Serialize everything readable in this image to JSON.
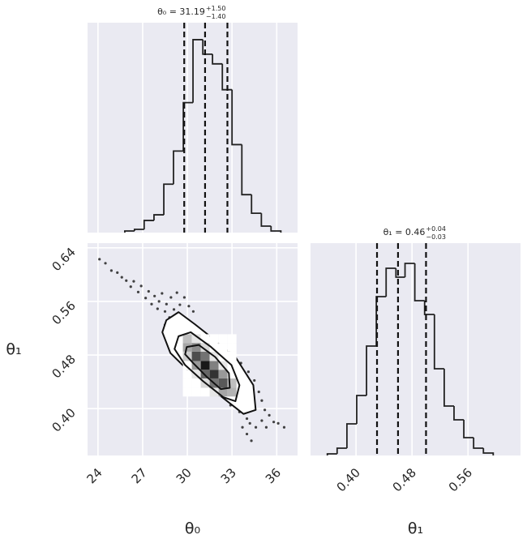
{
  "chart_data": [
    {
      "type": "histogram",
      "title": "θ₀ = 31.19",
      "title_sup": "+1.50",
      "title_sub": "−1.40",
      "bins": [
        25.8,
        26.45,
        27.1,
        27.76,
        28.42,
        29.07,
        29.73,
        30.38,
        31.04,
        31.69,
        32.35,
        33.0,
        33.66,
        34.31,
        34.97,
        35.62,
        36.28
      ],
      "values": [
        2,
        4,
        15,
        22,
        60,
        101,
        161,
        239,
        221,
        209,
        177,
        109,
        47,
        24,
        8,
        2
      ],
      "xlim": [
        23.3,
        37.4
      ],
      "xticks": [
        24,
        27,
        30,
        33,
        36
      ],
      "tick_labels": false,
      "ylim": [
        0,
        260
      ],
      "quantiles": [
        29.79,
        31.19,
        32.69
      ],
      "color": "#222222",
      "grid": true
    },
    {
      "type": "density2d",
      "xlabel": "θ₀",
      "ylabel": "θ₁",
      "xlim": [
        23.3,
        37.4
      ],
      "ylim": [
        0.33,
        0.647
      ],
      "xticks": [
        24,
        27,
        30,
        33,
        36
      ],
      "yticks": [
        {
          "value": 0.4,
          "label": "0.40"
        },
        0.48,
        0.56,
        0.64
      ],
      "grid": true,
      "color": "#222222",
      "points": {
        "x": [
          24.1,
          24.5,
          24.9,
          25.3,
          25.6,
          25.9,
          26.2,
          26.4,
          26.7,
          26.9,
          27.2,
          27.4,
          27.6,
          27.8,
          28.0,
          28.1,
          28.3,
          28.5,
          28.6,
          28.8,
          28.9,
          29.1,
          29.3,
          29.5,
          29.8,
          30.1,
          30.4,
          28.5,
          28.9,
          29.2,
          29.6,
          30.0,
          30.6,
          31.1,
          31.7,
          32.3,
          32.9,
          33.5,
          34.0,
          33.1,
          33.6,
          34.1,
          34.5,
          34.8,
          35.0,
          35.2,
          35.0,
          34.6,
          34.2,
          35.5,
          35.8,
          36.1,
          36.5,
          34.0,
          34.3,
          33.7,
          35.3
        ],
        "y": [
          0.623,
          0.617,
          0.606,
          0.603,
          0.596,
          0.591,
          0.582,
          0.59,
          0.574,
          0.583,
          0.565,
          0.575,
          0.556,
          0.568,
          0.549,
          0.56,
          0.572,
          0.545,
          0.556,
          0.536,
          0.566,
          0.548,
          0.573,
          0.555,
          0.566,
          0.553,
          0.545,
          0.525,
          0.508,
          0.497,
          0.485,
          0.47,
          0.455,
          0.443,
          0.43,
          0.42,
          0.405,
          0.395,
          0.385,
          0.455,
          0.468,
          0.455,
          0.442,
          0.425,
          0.412,
          0.398,
          0.382,
          0.372,
          0.378,
          0.39,
          0.38,
          0.378,
          0.372,
          0.362,
          0.352,
          0.372,
          0.372
        ]
      },
      "density": {
        "xbins": [
          29.7,
          30.3,
          30.9,
          31.5,
          32.1,
          32.7,
          33.3
        ],
        "ybins": [
          0.418,
          0.431,
          0.445,
          0.458,
          0.471,
          0.485,
          0.498,
          0.511
        ],
        "values": [
          [
            0,
            0,
            0,
            0.1,
            0.35,
            0.3
          ],
          [
            0,
            0,
            0.15,
            0.55,
            0.65,
            0.25
          ],
          [
            0,
            0.1,
            0.6,
            0.8,
            0.4,
            0
          ],
          [
            0,
            0.4,
            0.9,
            0.5,
            0.1,
            0
          ],
          [
            0.2,
            0.7,
            0.55,
            0.1,
            0,
            0
          ],
          [
            0.35,
            0.45,
            0.15,
            0,
            0,
            0
          ],
          [
            0.25,
            0.1,
            0,
            0,
            0,
            0
          ]
        ]
      },
      "contours": [
        {
          "x": [
            28.59,
            29.41,
            30.5,
            31.87,
            33.23,
            34.43,
            34.59,
            33.77,
            32.68,
            31.32,
            29.96,
            28.86,
            28.32
          ],
          "y": [
            0.532,
            0.544,
            0.526,
            0.502,
            0.477,
            0.435,
            0.398,
            0.392,
            0.411,
            0.435,
            0.459,
            0.483,
            0.514
          ]
        },
        {
          "x": [
            29.41,
            30.23,
            31.59,
            32.96,
            33.5,
            33.23,
            32.41,
            31.05,
            29.85,
            29.14
          ],
          "y": [
            0.508,
            0.514,
            0.492,
            0.465,
            0.435,
            0.411,
            0.417,
            0.441,
            0.465,
            0.489
          ]
        },
        {
          "x": [
            29.96,
            30.77,
            31.87,
            32.79,
            32.85,
            32.25,
            31.32,
            30.39,
            29.85
          ],
          "y": [
            0.492,
            0.495,
            0.477,
            0.453,
            0.431,
            0.429,
            0.447,
            0.468,
            0.481
          ]
        }
      ]
    },
    {
      "type": "histogram",
      "title": "θ₁ = 0.46",
      "title_sup": "+0.04",
      "title_sub": "−0.03",
      "xlabel": "θ₁",
      "bins": [
        0.359,
        0.373,
        0.387,
        0.401,
        0.415,
        0.429,
        0.443,
        0.457,
        0.47,
        0.484,
        0.498,
        0.512,
        0.526,
        0.54,
        0.554,
        0.568,
        0.582,
        0.596
      ],
      "values": [
        2,
        9,
        39,
        74,
        135,
        196,
        231,
        220,
        237,
        191,
        174,
        107,
        61,
        44,
        22,
        9,
        3
      ],
      "xlim": [
        0.335,
        0.635
      ],
      "xticks": [
        {
          "value": 0.4,
          "label": "0.40"
        },
        0.48,
        0.56
      ],
      "ylim": [
        0,
        262
      ],
      "quantiles": [
        0.43,
        0.46,
        0.5
      ],
      "color": "#222222",
      "grid": true
    }
  ]
}
